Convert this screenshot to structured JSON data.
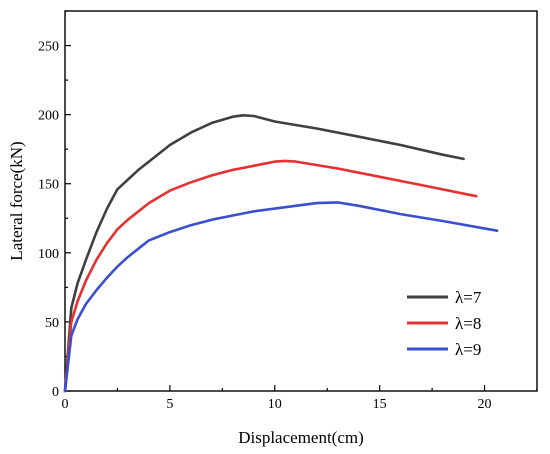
{
  "chart_data": {
    "type": "line",
    "title": "",
    "xlabel": "Displacement(cm)",
    "ylabel": "Lateral force(kN)",
    "xlim": [
      0,
      22.5
    ],
    "ylim": [
      0,
      275
    ],
    "xticks": [
      0,
      5,
      10,
      15,
      20
    ],
    "yticks": [
      0,
      50,
      100,
      150,
      200,
      250
    ],
    "grid": false,
    "legend_position": "bottom-right",
    "series": [
      {
        "name": "λ=7",
        "color": "#404040",
        "x": [
          0,
          0.3,
          0.6,
          1.0,
          1.5,
          2.0,
          2.5,
          3.0,
          3.5,
          4.0,
          5.0,
          6.0,
          7.0,
          8.0,
          8.5,
          9.0,
          10.0,
          12.0,
          14.0,
          16.0,
          18.0,
          19.0
        ],
        "y": [
          0,
          60,
          78,
          95,
          115,
          132,
          146,
          153,
          160,
          166,
          178,
          187,
          194,
          198.5,
          199.5,
          199,
          195,
          190,
          184,
          178,
          171,
          168
        ]
      },
      {
        "name": "λ=8",
        "color": "#e83030",
        "x": [
          0,
          0.3,
          0.6,
          1.0,
          1.5,
          2.0,
          2.5,
          3.0,
          3.5,
          4.0,
          5.0,
          6.0,
          7.0,
          8.0,
          9.0,
          10.0,
          10.5,
          11.0,
          13.0,
          15.0,
          17.0,
          19.6
        ],
        "y": [
          0,
          50,
          65,
          80,
          95,
          107,
          117,
          124,
          130,
          136,
          145,
          151,
          156,
          160,
          163,
          166,
          166.5,
          166,
          161,
          155,
          149,
          141
        ]
      },
      {
        "name": "λ=9",
        "color": "#3a4fd0",
        "x": [
          0,
          0.3,
          0.6,
          1.0,
          1.5,
          2.0,
          2.5,
          3.0,
          3.5,
          4.0,
          5.0,
          6.0,
          7.0,
          8.0,
          9.0,
          10.0,
          11.0,
          12.0,
          13.0,
          14.0,
          16.0,
          18.0,
          20.6
        ],
        "y": [
          0,
          40,
          52,
          63,
          73,
          82,
          90,
          97,
          103,
          109,
          115,
          120,
          124,
          127,
          130,
          132,
          134,
          136,
          136.5,
          134,
          128,
          123,
          116
        ]
      }
    ]
  }
}
